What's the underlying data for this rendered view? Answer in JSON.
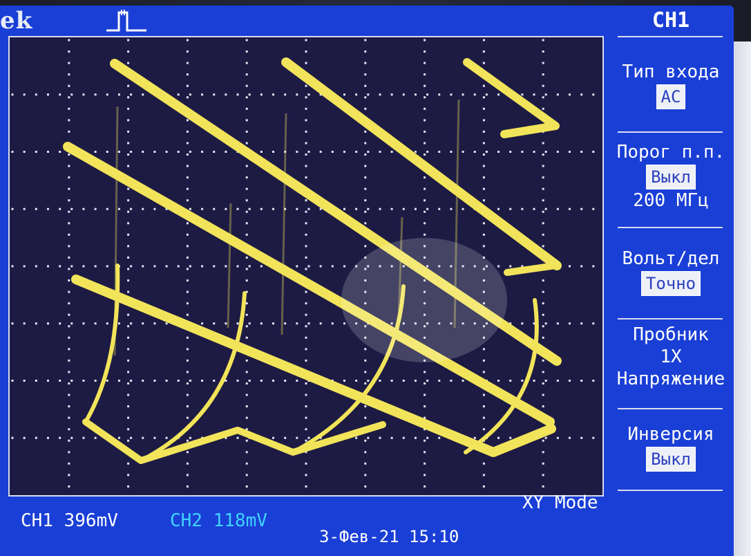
{
  "brand": "ek",
  "menu": {
    "title": "CH1",
    "items": [
      {
        "label": "Тип входа",
        "value": "AC",
        "extra": ""
      },
      {
        "label": "Порог п.п.",
        "value": "Выкл",
        "extra": "200 МГц"
      },
      {
        "label": "Вольт/дел",
        "value": "Точно",
        "extra": ""
      },
      {
        "label": "Пробник",
        "value": "",
        "extra": "1X"
      },
      {
        "label": "Напряжение",
        "value": "",
        "extra": ""
      },
      {
        "label": "Инверсия",
        "value": "Выкл",
        "extra": ""
      }
    ]
  },
  "status": {
    "ch1": "CH1  396mV",
    "ch2": "CH2  118mV",
    "mode": "XY Mode",
    "datetime": "3-Фев-21 15:10"
  },
  "colors": {
    "screen": "#1a3fd6",
    "graticule_bg": "#1d1b44",
    "trace": "#f2e45a",
    "ch2": "#3fd4ff"
  },
  "icons": {
    "trigger": "trigger-pulse-icon"
  }
}
